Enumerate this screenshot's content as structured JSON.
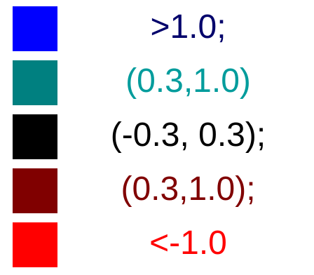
{
  "legend": {
    "items": [
      {
        "label": ">1.0;",
        "swatch_color": "#0000ff",
        "text_color": "#00006b"
      },
      {
        "label": "(0.3,1.0)",
        "swatch_color": "#008080",
        "text_color": "#009c9c"
      },
      {
        "label": "(-0.3, 0.3);",
        "swatch_color": "#000000",
        "text_color": "#000000"
      },
      {
        "label": "(0.3,1.0);",
        "swatch_color": "#800000",
        "text_color": "#800000"
      },
      {
        "label": "<-1.0",
        "swatch_color": "#ff0000",
        "text_color": "#ff0000"
      }
    ]
  }
}
